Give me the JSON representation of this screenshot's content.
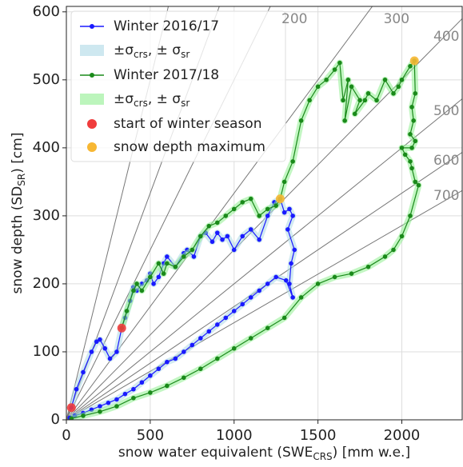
{
  "chart_data": {
    "type": "line",
    "xlabel": [
      "snow water equivalent (SWE",
      "CRS",
      ") [mm w.e.]"
    ],
    "ylabel": [
      "snow depth (SD",
      "SR",
      ") [cm]"
    ],
    "xlim": [
      0,
      2360
    ],
    "ylim": [
      0,
      608
    ],
    "xticks": [
      0,
      500,
      1000,
      1500,
      2000
    ],
    "yticks": [
      0,
      100,
      200,
      300,
      400,
      500,
      600
    ],
    "grid": true,
    "legend": "upper left",
    "density_lines": [
      {
        "value": 200,
        "label": "200"
      },
      {
        "value": 300,
        "label": "300"
      },
      {
        "value": 400,
        "label": "400"
      },
      {
        "value": 500,
        "label": "500"
      },
      {
        "value": 600,
        "label": "600"
      },
      {
        "value": 700,
        "label": "700"
      }
    ],
    "unlabeled_density_lines": [
      100,
      150
    ],
    "series": [
      {
        "name": "Winter 2016/17",
        "color": "#1a1aff",
        "band_color": "#add8e6",
        "band_label": [
          "±σ",
          "crs",
          ", ± σ",
          "sr"
        ],
        "x": [
          30,
          60,
          100,
          150,
          180,
          200,
          230,
          260,
          300,
          330,
          350,
          380,
          400,
          420,
          450,
          480,
          500,
          520,
          550,
          580,
          600,
          650,
          700,
          720,
          760,
          800,
          830,
          870,
          900,
          930,
          960,
          1000,
          1050,
          1100,
          1150,
          1200,
          1240,
          1275,
          1300,
          1330,
          1350,
          1320,
          1360,
          1340,
          1330,
          1350,
          1310,
          1250,
          1200,
          1150,
          1100,
          1050,
          1000,
          950,
          900,
          850,
          800,
          750,
          700,
          650,
          600,
          550,
          500,
          450,
          400,
          350,
          300,
          250,
          200,
          150,
          100,
          50,
          20
        ],
        "values": [
          18,
          45,
          70,
          100,
          115,
          118,
          105,
          90,
          100,
          135,
          150,
          175,
          195,
          190,
          200,
          205,
          215,
          200,
          210,
          230,
          240,
          225,
          245,
          250,
          240,
          270,
          275,
          262,
          275,
          265,
          270,
          250,
          270,
          280,
          265,
          300,
          320,
          325,
          305,
          310,
          300,
          280,
          250,
          230,
          200,
          180,
          205,
          210,
          200,
          190,
          180,
          170,
          160,
          150,
          140,
          130,
          120,
          110,
          100,
          90,
          85,
          75,
          65,
          55,
          45,
          38,
          30,
          25,
          20,
          15,
          10,
          6,
          3
        ]
      },
      {
        "name": "Winter 2017/18",
        "color": "#1a8a1a",
        "band_color": "#90ee90",
        "band_label": [
          "±σ",
          "crs",
          ", ± σ",
          "sr"
        ],
        "x": [
          330,
          360,
          400,
          420,
          450,
          500,
          550,
          580,
          600,
          650,
          700,
          750,
          800,
          850,
          900,
          950,
          1000,
          1050,
          1100,
          1150,
          1200,
          1250,
          1275,
          1300,
          1350,
          1400,
          1450,
          1500,
          1550,
          1600,
          1630,
          1650,
          1680,
          1660,
          1700,
          1750,
          1720,
          1780,
          1800,
          1850,
          1900,
          1950,
          1980,
          2000,
          2050,
          2075,
          2080,
          2060,
          2070,
          2050,
          2080,
          2060,
          2000,
          2020,
          2050,
          2060,
          2080,
          2100,
          2050,
          2000,
          1950,
          1900,
          1800,
          1700,
          1600,
          1500,
          1400,
          1300,
          1200,
          1100,
          1000,
          900,
          800,
          700,
          600,
          500,
          400,
          300,
          200,
          100,
          30
        ],
        "values": [
          135,
          160,
          190,
          200,
          190,
          210,
          230,
          215,
          230,
          225,
          240,
          250,
          270,
          285,
          290,
          300,
          310,
          320,
          325,
          300,
          310,
          315,
          325,
          350,
          380,
          440,
          470,
          490,
          500,
          515,
          525,
          470,
          500,
          440,
          490,
          470,
          450,
          470,
          480,
          470,
          500,
          480,
          490,
          500,
          520,
          528,
          480,
          460,
          440,
          420,
          410,
          400,
          400,
          390,
          380,
          370,
          350,
          345,
          300,
          270,
          250,
          240,
          225,
          215,
          210,
          200,
          180,
          150,
          135,
          120,
          105,
          90,
          75,
          62,
          50,
          40,
          32,
          20,
          12,
          6,
          2
        ]
      }
    ],
    "markers": [
      {
        "name": "start of winter season",
        "color": "#f03c3c",
        "x": [
          30,
          330
        ],
        "values": [
          18,
          135
        ]
      },
      {
        "name": "snow depth maximum",
        "color": "#f7b733",
        "x": [
          1275,
          2075
        ],
        "values": [
          325,
          528
        ]
      }
    ]
  }
}
